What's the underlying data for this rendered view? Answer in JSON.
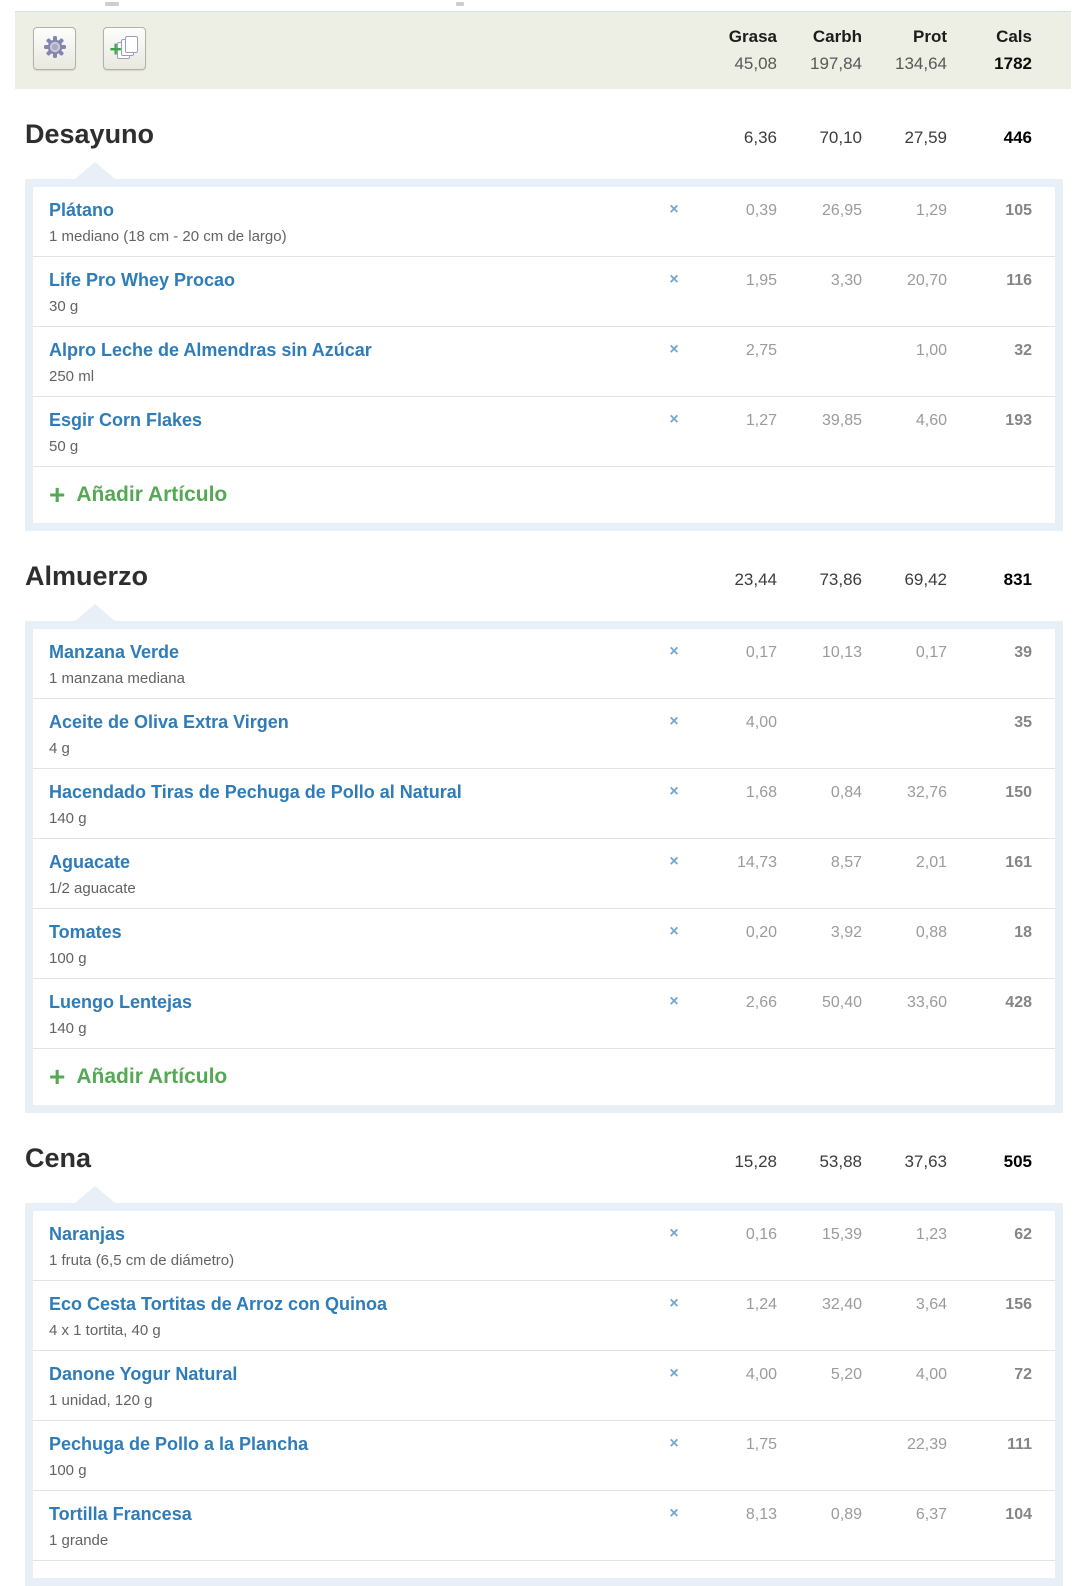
{
  "columns": {
    "labels": [
      "Grasa",
      "Carbh",
      "Prot",
      "Cals"
    ]
  },
  "day_totals": {
    "grasa": "45,08",
    "carbh": "197,84",
    "prot": "134,64",
    "cals": "1782"
  },
  "toolbar": {
    "settings_icon": "gear-icon",
    "copy_icon": "add-pages-icon"
  },
  "add_item": {
    "plus": "+",
    "label": "Añadir Artículo"
  },
  "delete_glyph": "×",
  "colors": {
    "link_blue": "#2e7cb8",
    "add_green": "#55a955",
    "panel_tint": "#e9eff7",
    "toolbar_bg": "#edeee4"
  },
  "meals": [
    {
      "name": "Desayuno",
      "totals": {
        "grasa": "6,36",
        "carbh": "70,10",
        "prot": "27,59",
        "cals": "446"
      },
      "show_add_item": true,
      "truncated": false,
      "items": [
        {
          "name": "Plátano",
          "serving": "1 mediano (18 cm - 20 cm de largo)",
          "grasa": "0,39",
          "carbh": "26,95",
          "prot": "1,29",
          "cals": "105"
        },
        {
          "name": "Life Pro Whey Procao",
          "serving": "30 g",
          "grasa": "1,95",
          "carbh": "3,30",
          "prot": "20,70",
          "cals": "116"
        },
        {
          "name": "Alpro Leche de Almendras sin Azúcar",
          "serving": "250 ml",
          "grasa": "2,75",
          "carbh": "",
          "prot": "1,00",
          "cals": "32"
        },
        {
          "name": "Esgir Corn Flakes",
          "serving": "50 g",
          "grasa": "1,27",
          "carbh": "39,85",
          "prot": "4,60",
          "cals": "193"
        }
      ]
    },
    {
      "name": "Almuerzo",
      "totals": {
        "grasa": "23,44",
        "carbh": "73,86",
        "prot": "69,42",
        "cals": "831"
      },
      "show_add_item": true,
      "truncated": false,
      "items": [
        {
          "name": "Manzana Verde",
          "serving": "1 manzana mediana",
          "grasa": "0,17",
          "carbh": "10,13",
          "prot": "0,17",
          "cals": "39"
        },
        {
          "name": "Aceite de Oliva Extra Virgen",
          "serving": "4 g",
          "grasa": "4,00",
          "carbh": "",
          "prot": "",
          "cals": "35"
        },
        {
          "name": "Hacendado Tiras de Pechuga de Pollo al Natural",
          "serving": "140 g",
          "grasa": "1,68",
          "carbh": "0,84",
          "prot": "32,76",
          "cals": "150"
        },
        {
          "name": "Aguacate",
          "serving": "1/2 aguacate",
          "grasa": "14,73",
          "carbh": "8,57",
          "prot": "2,01",
          "cals": "161"
        },
        {
          "name": "Tomates",
          "serving": "100 g",
          "grasa": "0,20",
          "carbh": "3,92",
          "prot": "0,88",
          "cals": "18"
        },
        {
          "name": "Luengo Lentejas",
          "serving": "140 g",
          "grasa": "2,66",
          "carbh": "50,40",
          "prot": "33,60",
          "cals": "428"
        }
      ]
    },
    {
      "name": "Cena",
      "totals": {
        "grasa": "15,28",
        "carbh": "53,88",
        "prot": "37,63",
        "cals": "505"
      },
      "show_add_item": false,
      "truncated": true,
      "items": [
        {
          "name": "Naranjas",
          "serving": "1 fruta (6,5 cm de diámetro)",
          "grasa": "0,16",
          "carbh": "15,39",
          "prot": "1,23",
          "cals": "62"
        },
        {
          "name": "Eco Cesta Tortitas de Arroz con Quinoa",
          "serving": "4 x 1 tortita, 40 g",
          "grasa": "1,24",
          "carbh": "32,40",
          "prot": "3,64",
          "cals": "156"
        },
        {
          "name": "Danone Yogur Natural",
          "serving": "1 unidad, 120 g",
          "grasa": "4,00",
          "carbh": "5,20",
          "prot": "4,00",
          "cals": "72"
        },
        {
          "name": "Pechuga de Pollo a la Plancha",
          "serving": "100 g",
          "grasa": "1,75",
          "carbh": "",
          "prot": "22,39",
          "cals": "111"
        },
        {
          "name": "Tortilla Francesa",
          "serving": "1 grande",
          "grasa": "8,13",
          "carbh": "0,89",
          "prot": "6,37",
          "cals": "104"
        }
      ]
    }
  ]
}
